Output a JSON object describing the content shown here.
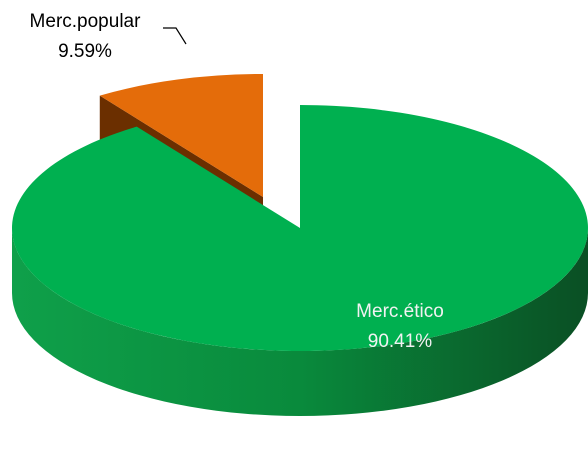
{
  "chart_data": {
    "type": "pie",
    "categories": [
      "Merc.popular",
      "Merc.ético"
    ],
    "values": [
      9.59,
      90.41
    ],
    "value_labels": [
      "9.59%",
      "90.41%"
    ],
    "colors": [
      "#e46c0a",
      "#00b050"
    ]
  }
}
